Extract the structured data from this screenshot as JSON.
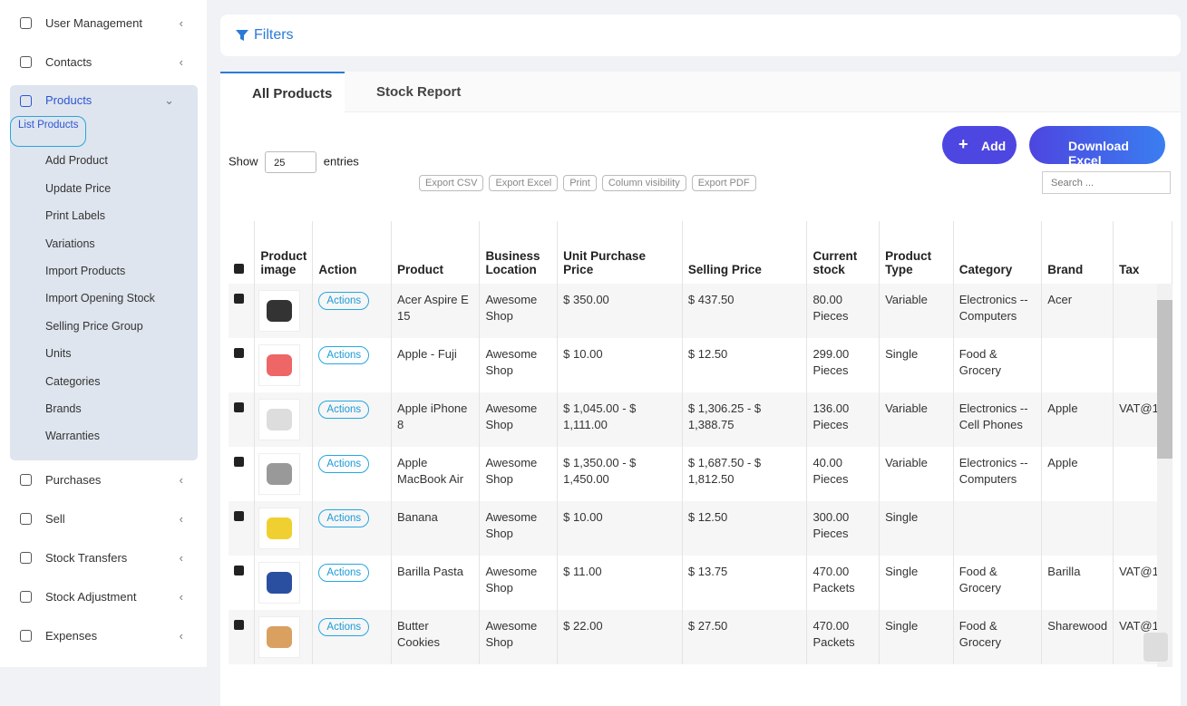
{
  "sidebar": {
    "items": [
      {
        "label": "User Management"
      },
      {
        "label": "Contacts"
      },
      {
        "label": "Products",
        "submenu": [
          "List Products",
          "Add Product",
          "Update Price",
          "Print Labels",
          "Variations",
          "Import Products",
          "Import Opening Stock",
          "Selling Price Group",
          "Units",
          "Categories",
          "Brands",
          "Warranties"
        ]
      },
      {
        "label": "Purchases"
      },
      {
        "label": "Sell"
      },
      {
        "label": "Stock Transfers"
      },
      {
        "label": "Stock Adjustment"
      },
      {
        "label": "Expenses"
      }
    ]
  },
  "filters": {
    "title": "Filters"
  },
  "tabs": [
    "All Products",
    "Stock Report"
  ],
  "buttons": {
    "add": "Add",
    "download": "Download Excel"
  },
  "length": {
    "show": "Show",
    "value": "25",
    "entries": "entries"
  },
  "export_buttons": [
    "Export CSV",
    "Export Excel",
    "Print",
    "Column visibility",
    "Export PDF"
  ],
  "search": {
    "placeholder": "Search ..."
  },
  "table": {
    "headers": [
      "Product image",
      "Action",
      "Product",
      "Business Location",
      "Unit Purchase Price",
      "Selling Price",
      "Current stock",
      "Product Type",
      "Category",
      "Brand",
      "Tax"
    ],
    "rows": [
      [
        "Actions",
        "Acer Aspire E 15",
        "Awesome Shop",
        "$ 350.00",
        "$ 437.50",
        "80.00 Pieces",
        "Variable",
        "Electronics -- Computers",
        "Acer",
        null
      ],
      [
        "Actions",
        "Apple - Fuji",
        "Awesome Shop",
        "$ 10.00",
        "$ 12.50",
        "299.00 Pieces",
        "Single",
        "Food & Grocery",
        null,
        null
      ],
      [
        "Actions",
        "Apple iPhone 8",
        "Awesome Shop",
        "$ 1,045.00 - $ 1,111.00",
        "$ 1,306.25 - $ 1,388.75",
        "136.00 Pieces",
        "Variable",
        "Electronics -- Cell Phones",
        "Apple",
        "VAT@1"
      ],
      [
        "Actions",
        "Apple MacBook Air",
        "Awesome Shop",
        "$ 1,350.00 - $ 1,450.00",
        "$ 1,687.50 - $ 1,812.50",
        "40.00 Pieces",
        "Variable",
        "Electronics -- Computers",
        "Apple",
        null
      ],
      [
        "Actions",
        "Banana",
        "Awesome Shop",
        "$ 10.00",
        "$ 12.50",
        "300.00 Pieces",
        "Single",
        null,
        null,
        null
      ],
      [
        "Actions",
        "Barilla Pasta",
        "Awesome Shop",
        "$ 11.00",
        "$ 13.75",
        "470.00 Packets",
        "Single",
        "Food & Grocery",
        "Barilla",
        "VAT@1"
      ],
      [
        "Actions",
        "Butter Cookies",
        "Awesome Shop",
        "$ 22.00",
        "$ 27.50",
        "470.00 Packets",
        "Single",
        "Food & Grocery",
        "Sharewood",
        "VAT@1"
      ]
    ]
  }
}
